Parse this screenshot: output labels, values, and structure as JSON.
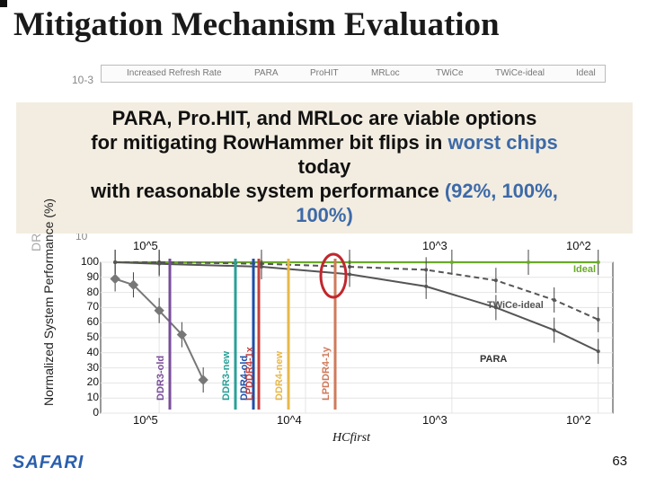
{
  "slide": {
    "title": "Mitigation Mechanism Evaluation",
    "page_number": "63",
    "logo_text": "SAFARI"
  },
  "callout": {
    "line1": "PARA, Pro.HIT, and MRLoc are viable options",
    "line2_plain": "for mitigating RowHammer bit flips in ",
    "line2_highlight": "worst chips",
    "line3": "today",
    "line4_plain": "with reasonable system performance ",
    "line4_highlight": "(92%, 100%,",
    "line5": "100%)",
    "highlight_color": "#3d6aa8"
  },
  "top_chart": {
    "legend": [
      "Increased Refresh Rate",
      "PARA",
      "ProHIT",
      "MRLoc",
      "TWiCe",
      "TWiCe-ideal",
      "Ideal"
    ],
    "ylabel_fragment": "DRAM ... (% of R",
    "yticks": [
      "10-3",
      "10"
    ],
    "xticks": [
      "10",
      "10",
      "10",
      "10"
    ]
  },
  "chart_data": {
    "type": "line",
    "xlabel": "HCfirst",
    "ylabel": "Normalized System Performance (%)",
    "x_scale": "log (reversed)",
    "xticks": [
      "10^5",
      "10^4",
      "10^3",
      "10^2"
    ],
    "ylim": [
      0,
      100
    ],
    "yticks": [
      "0",
      "10",
      "20",
      "30",
      "40",
      "50",
      "60",
      "70",
      "80",
      "90",
      "100"
    ],
    "vertical_markers": [
      {
        "label": "DDR3-old",
        "color": "#7a4e9a"
      },
      {
        "label": "DDR3-new",
        "color": "#2aa198"
      },
      {
        "label": "DDR4-old",
        "color": "#1d4fa8"
      },
      {
        "label": "LPDDR4-1x",
        "color": "#c44040"
      },
      {
        "label": "DDR4-new",
        "color": "#e8b84a"
      },
      {
        "label": "LPDDR4-1y",
        "color": "#d07a5a"
      }
    ],
    "series": [
      {
        "name": "Ideal",
        "color": "#6aaa28",
        "x": [
          200000,
          100000,
          20000,
          5000,
          1000,
          300,
          100
        ],
        "y": [
          100,
          100,
          100,
          100,
          100,
          100,
          100
        ]
      },
      {
        "name": "TWiCe-ideal",
        "color": "#555555",
        "x": [
          200000,
          100000,
          20000,
          5000,
          1500,
          500,
          200,
          100
        ],
        "y": [
          100,
          100,
          99,
          97,
          95,
          88,
          75,
          62
        ]
      },
      {
        "name": "PARA",
        "color": "#555555",
        "x": [
          200000,
          100000,
          20000,
          5000,
          1500,
          500,
          200,
          100
        ],
        "y": [
          100,
          99,
          97,
          92,
          84,
          70,
          55,
          41
        ]
      },
      {
        "name": "Increased Refresh Rate",
        "color": "#777777",
        "x": [
          200000,
          150000,
          100000,
          70000,
          50000
        ],
        "y": [
          89,
          85,
          68,
          52,
          22
        ]
      }
    ],
    "legend": [
      "Ideal",
      "TWiCe-ideal",
      "PARA"
    ],
    "grid": true
  }
}
